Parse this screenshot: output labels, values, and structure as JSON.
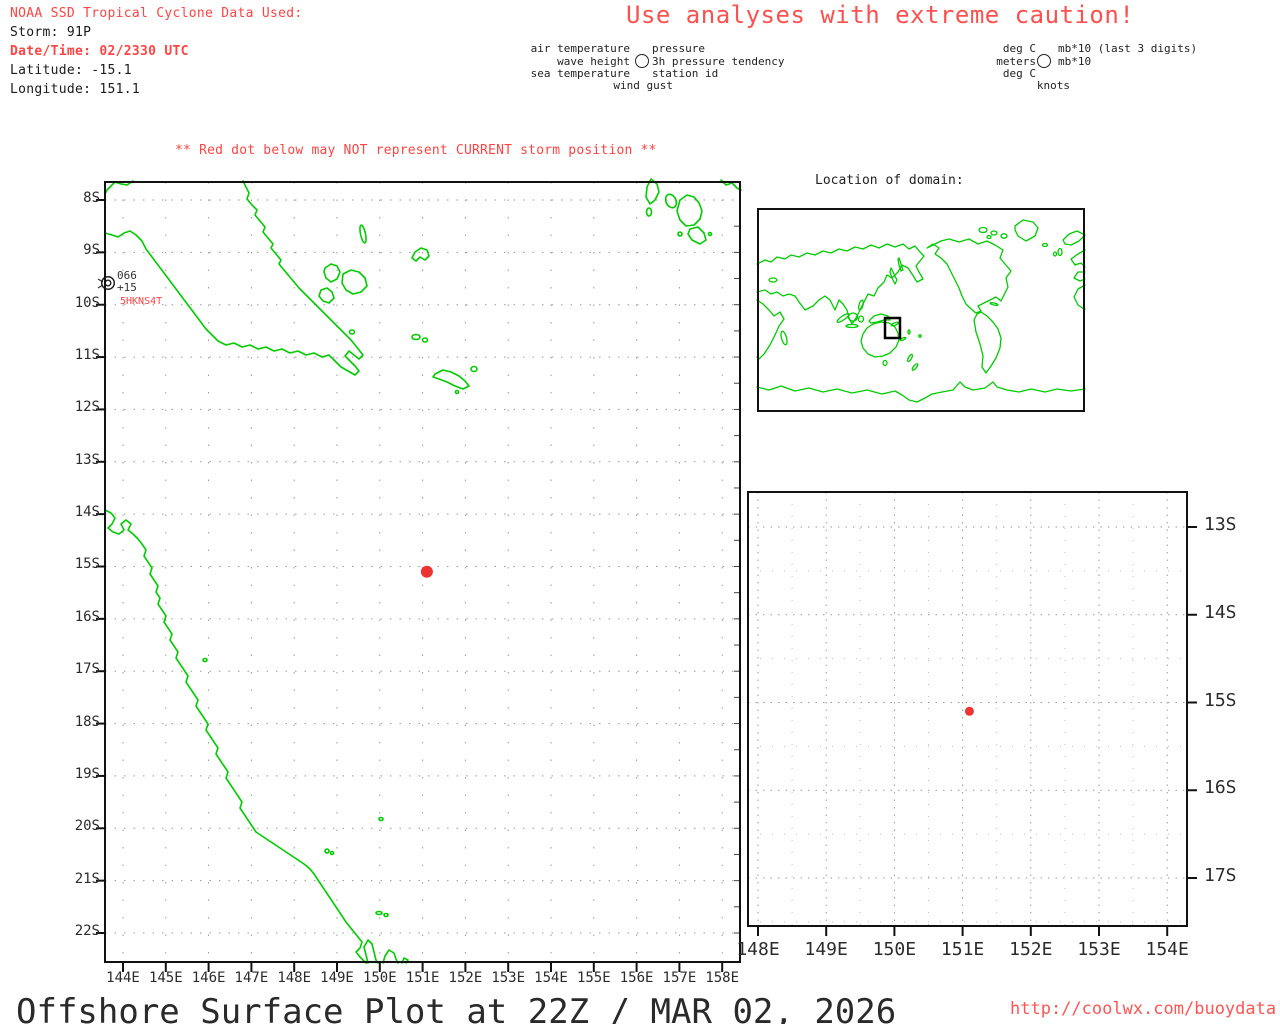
{
  "colors": {
    "coast_green": "#00cc00",
    "alert_red": "#ff4444",
    "storm_dot_red": "#ee3333",
    "grid_gray": "#aaaaaa",
    "ink": "#1a1a1a"
  },
  "header": {
    "source": "NOAA SSD Tropical Cyclone Data Used:",
    "storm": "Storm: 91P",
    "datetime": "Date/Time: 02/2330 UTC",
    "latitude": "Latitude: -15.1",
    "longitude": "Longitude: 151.1"
  },
  "caution": "Use analyses with extreme caution!",
  "station_legend": {
    "rows": [
      {
        "left": "air temperature",
        "right": "pressure"
      },
      {
        "left": "wave height",
        "right": "3h pressure tendency"
      },
      {
        "left": "sea temperature",
        "right": "station id"
      },
      {
        "left": "wind gust",
        "right": ""
      }
    ],
    "circle_icon": "station-circle"
  },
  "units_legend": {
    "rows": [
      {
        "left": "deg C",
        "right": "mb*10 (last 3 digits)"
      },
      {
        "left": "meters",
        "right": "mb*10"
      },
      {
        "left": "deg C",
        "right": ""
      },
      {
        "left": "knots",
        "right": ""
      }
    ],
    "circle_icon": "station-circle"
  },
  "warning": "** Red dot below may NOT represent CURRENT storm position **",
  "main_map": {
    "lat_labels": [
      "8S",
      "9S",
      "10S",
      "11S",
      "12S",
      "13S",
      "14S",
      "15S",
      "16S",
      "17S",
      "18S",
      "19S",
      "20S",
      "21S",
      "22S"
    ],
    "lon_labels": [
      "144E",
      "145E",
      "146E",
      "147E",
      "148E",
      "149E",
      "150E",
      "151E",
      "152E",
      "153E",
      "154E",
      "155E",
      "156E",
      "157E",
      "158E"
    ],
    "station": {
      "pressure": "066",
      "tendency": "+15",
      "id": "5HKNS4T"
    },
    "storm": {
      "lon": 151.1,
      "lat": -15.1
    }
  },
  "inset": {
    "title": "Location of domain:"
  },
  "zoom_map": {
    "lat_labels": [
      "13S",
      "14S",
      "15S",
      "16S",
      "17S"
    ],
    "lon_labels": [
      "148E",
      "149E",
      "150E",
      "151E",
      "152E",
      "153E",
      "154E"
    ],
    "storm": {
      "lon": 151.1,
      "lat": -15.1
    }
  },
  "footer": {
    "title": "Offshore Surface Plot at 22Z / MAR 02, 2026",
    "url": "http://coolwx.com/buoydata"
  }
}
